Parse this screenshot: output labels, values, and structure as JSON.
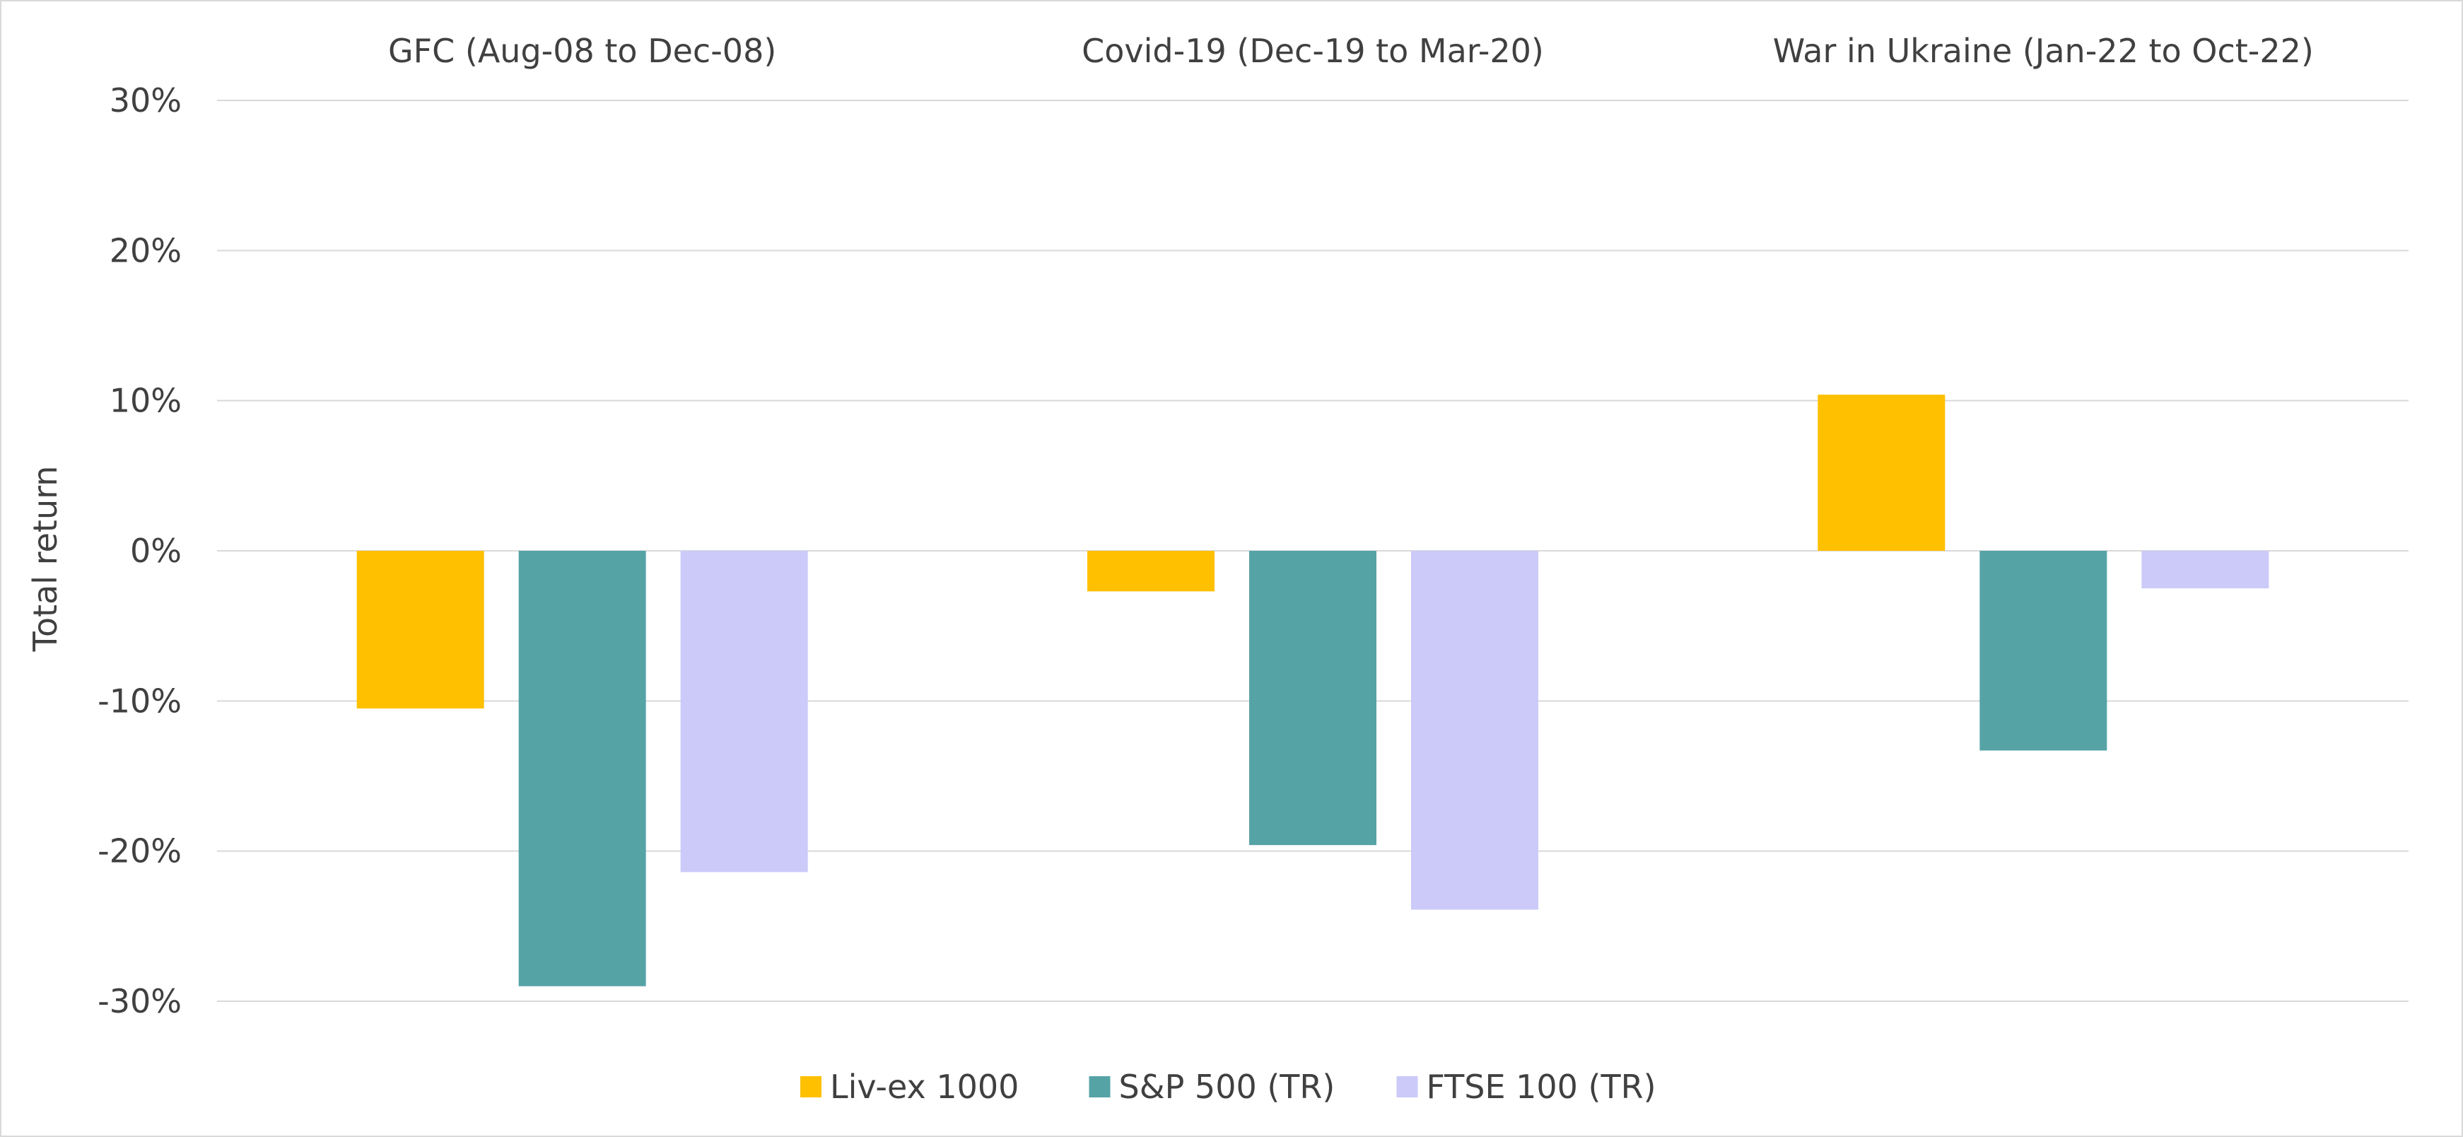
{
  "chart_data": {
    "type": "bar",
    "title": "",
    "xlabel": "",
    "ylabel": "Total return",
    "categories": [
      "GFC (Aug-08 to Dec-08)",
      "Covid-19 (Dec-19 to Mar-20)",
      "War in Ukraine (Jan-22 to Oct-22)"
    ],
    "series": [
      {
        "name": "Liv-ex 1000",
        "color": "#ffc000",
        "values": [
          -10.5,
          -2.7,
          10.4
        ]
      },
      {
        "name": "S&P 500 (TR)",
        "color": "#56a3a6",
        "values": [
          -29.0,
          -19.6,
          -13.3
        ]
      },
      {
        "name": "FTSE 100 (TR)",
        "color": "#cbcaf9",
        "values": [
          -21.4,
          -23.9,
          -2.5
        ]
      }
    ],
    "ylim": [
      -30,
      30
    ],
    "yticks": [
      30,
      20,
      10,
      0,
      -10,
      -20,
      -30
    ],
    "ytick_labels": [
      "30%",
      "20%",
      "10%",
      "0%",
      "-10%",
      "-20%",
      "-30%"
    ],
    "category_labels_position": "top",
    "legend_position": "bottom",
    "grid": true
  }
}
